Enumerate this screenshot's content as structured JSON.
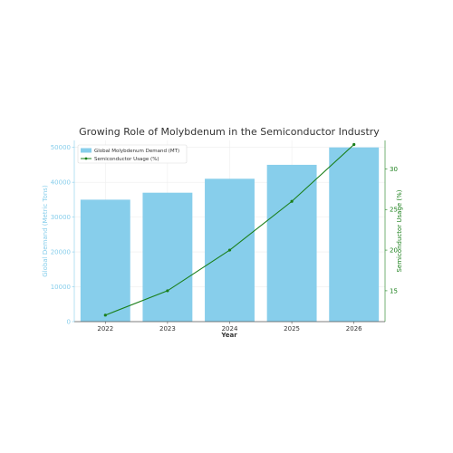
{
  "chart_data": {
    "type": "bar+line",
    "title": "Growing Role of Molybdenum in the Semiconductor Industry",
    "xlabel": "Year",
    "ylabel_left": "Global Demand (Metric Tons)",
    "ylabel_right": "Semiconductor Usage (%)",
    "categories": [
      "2022",
      "2023",
      "2024",
      "2025",
      "2026"
    ],
    "series": [
      {
        "name": "Global Molybdenum Demand (MT)",
        "type": "bar",
        "axis": "left",
        "color": "#87ceeb",
        "values": [
          35000,
          37000,
          41000,
          45000,
          50000
        ]
      },
      {
        "name": "Semiconductor Usage (%)",
        "type": "line",
        "axis": "right",
        "color": "#1a7f1a",
        "values": [
          12,
          15,
          20,
          26,
          33
        ]
      }
    ],
    "ylim_left": [
      0,
      52000
    ],
    "yticks_left": [
      0,
      10000,
      20000,
      30000,
      40000,
      50000
    ],
    "ylim_right": [
      11.2,
      33.5
    ],
    "yticks_right": [
      15,
      20,
      25,
      30
    ],
    "left_axis_color": "#87ceeb",
    "right_axis_color": "#1a7f1a",
    "grid": true,
    "legend_position": "top-left"
  }
}
